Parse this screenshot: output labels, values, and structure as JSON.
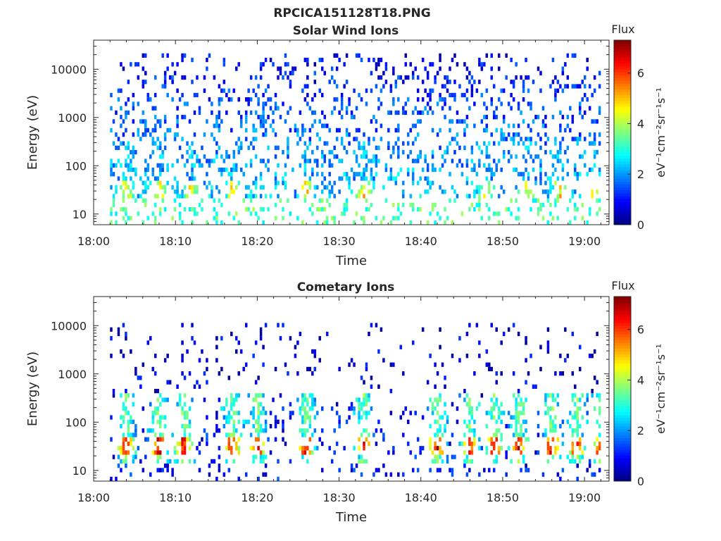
{
  "figure_title": "RPCICA151128T18.PNG",
  "chart_data": [
    {
      "type": "heatmap",
      "title": "Solar Wind Ions",
      "xlabel": "Time",
      "ylabel": "Energy (eV)",
      "x_ticks": [
        "18:00",
        "18:10",
        "18:20",
        "18:30",
        "18:40",
        "18:50",
        "19:00"
      ],
      "y_ticks": [
        "10",
        "100",
        "1000",
        "10000"
      ],
      "y_scale": "log",
      "ylim": [
        6,
        40000
      ],
      "xlim": [
        "18:00",
        "19:03"
      ],
      "data_range": [
        "18:02",
        "19:02"
      ],
      "colorbar": {
        "title": "Flux",
        "label": "eV⁻¹cm⁻²sr⁻¹s⁻¹",
        "ticks": [
          "0",
          "2",
          "4",
          "6"
        ],
        "range": [
          0,
          7.3
        ],
        "colormap": "jet"
      },
      "features": {
        "background_flux": "sparse 1–4 at 20 eV–20 keV, lower above 1 keV",
        "peak_energy_eV": 33,
        "peak_flux": 4.8,
        "burst_times": [
          "18:04",
          "18:08",
          "18:12",
          "18:17",
          "18:26",
          "18:33",
          "18:48",
          "18:53",
          "18:57",
          "19:01"
        ]
      }
    },
    {
      "type": "heatmap",
      "title": "Cometary Ions",
      "xlabel": "Time",
      "ylabel": "Energy (eV)",
      "x_ticks": [
        "18:00",
        "18:10",
        "18:20",
        "18:30",
        "18:40",
        "18:50",
        "19:00"
      ],
      "y_ticks": [
        "10",
        "100",
        "1000",
        "10000"
      ],
      "y_scale": "log",
      "ylim": [
        6,
        40000
      ],
      "xlim": [
        "18:00",
        "19:03"
      ],
      "data_range": [
        "18:02",
        "19:02"
      ],
      "colorbar": {
        "title": "Flux",
        "label": "eV⁻¹cm⁻²sr⁻¹s⁻¹",
        "ticks": [
          "0",
          "2",
          "4",
          "6"
        ],
        "range": [
          0,
          7.3
        ],
        "colormap": "jet"
      },
      "features": {
        "background_flux": "sparse 0.5–2 above 200 eV",
        "peak_energy_eV": 33,
        "peak_flux": 6.8,
        "burst_times": [
          "18:04",
          "18:08",
          "18:11",
          "18:17",
          "18:20",
          "18:26",
          "18:33",
          "18:42",
          "18:46",
          "18:49",
          "18:52",
          "18:56",
          "18:59",
          "19:02"
        ]
      }
    }
  ]
}
